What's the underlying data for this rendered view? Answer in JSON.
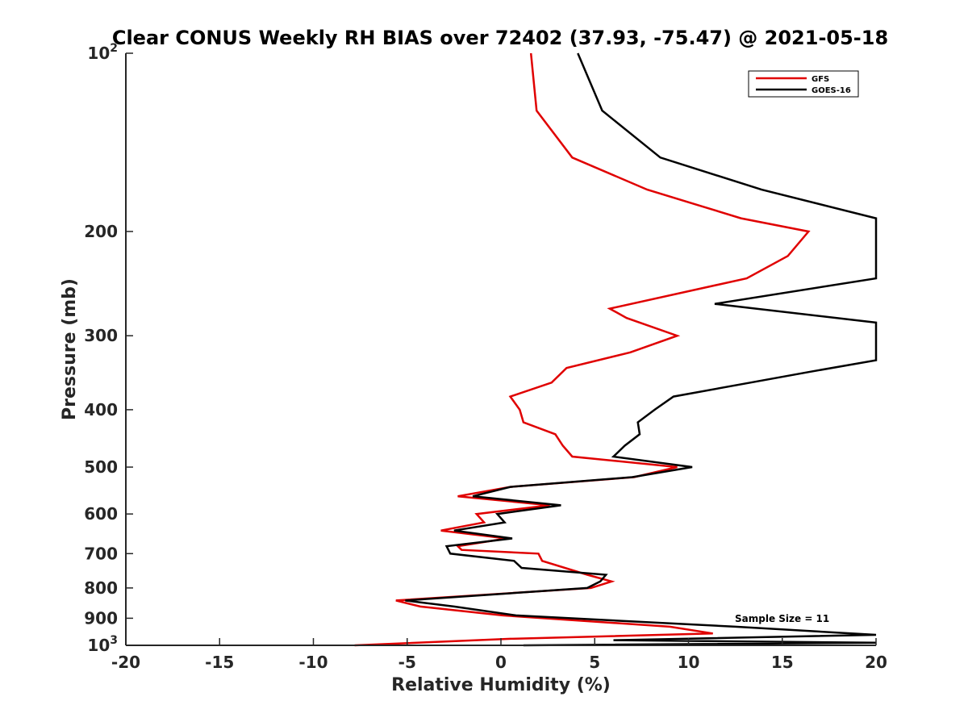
{
  "chart_data": {
    "type": "line",
    "title": "Clear CONUS Weekly RH BIAS over 72402 (37.93, -75.47) @ 2021-05-18",
    "xlabel": "Relative Humidity (%)",
    "ylabel": "Pressure (mb)",
    "xlim": [
      -20,
      20
    ],
    "ylim": [
      100,
      1000
    ],
    "yscale": "log",
    "y_reversed": true,
    "grid": false,
    "legend_position": "top-right",
    "x_ticks": [
      -20,
      -15,
      -10,
      -5,
      0,
      5,
      10,
      15,
      20
    ],
    "x_tick_labels": [
      "-20",
      "-15",
      "-10",
      "-5",
      "0",
      "5",
      "10",
      "15",
      "20"
    ],
    "y_ticks": [
      200,
      300,
      400,
      500,
      600,
      700,
      800,
      900
    ],
    "y_tick_labels": [
      "200",
      "300",
      "400",
      "500",
      "600",
      "700",
      "800",
      "900"
    ],
    "y_decade_ticks": [
      {
        "value": 100,
        "base": "10",
        "exp": "2"
      },
      {
        "value": 1000,
        "base": "10",
        "exp": "3"
      }
    ],
    "annotation": "Sample Size = 11",
    "series": [
      {
        "name": "GFS",
        "color": "#e00000",
        "points": [
          {
            "x": 1.6,
            "y": 100
          },
          {
            "x": 1.9,
            "y": 125
          },
          {
            "x": 3.8,
            "y": 150
          },
          {
            "x": 7.8,
            "y": 170
          },
          {
            "x": 12.8,
            "y": 190
          },
          {
            "x": 16.4,
            "y": 200
          },
          {
            "x": 15.3,
            "y": 220
          },
          {
            "x": 13.1,
            "y": 240
          },
          {
            "x": 5.8,
            "y": 270
          },
          {
            "x": 6.7,
            "y": 280
          },
          {
            "x": 9.4,
            "y": 300
          },
          {
            "x": 6.9,
            "y": 320
          },
          {
            "x": 3.5,
            "y": 340
          },
          {
            "x": 2.7,
            "y": 360
          },
          {
            "x": 0.5,
            "y": 380
          },
          {
            "x": 1.0,
            "y": 400
          },
          {
            "x": 1.2,
            "y": 420
          },
          {
            "x": 2.9,
            "y": 440
          },
          {
            "x": 3.3,
            "y": 460
          },
          {
            "x": 3.8,
            "y": 480
          },
          {
            "x": 9.4,
            "y": 500
          },
          {
            "x": 7.1,
            "y": 520
          },
          {
            "x": 0.5,
            "y": 540
          },
          {
            "x": -2.3,
            "y": 560
          },
          {
            "x": 2.6,
            "y": 580
          },
          {
            "x": -1.3,
            "y": 600
          },
          {
            "x": -0.9,
            "y": 620
          },
          {
            "x": -3.2,
            "y": 640
          },
          {
            "x": 0.3,
            "y": 660
          },
          {
            "x": -2.3,
            "y": 680
          },
          {
            "x": -2.1,
            "y": 690
          },
          {
            "x": 2.0,
            "y": 700
          },
          {
            "x": 2.2,
            "y": 720
          },
          {
            "x": 4.6,
            "y": 760
          },
          {
            "x": 5.9,
            "y": 780
          },
          {
            "x": 4.8,
            "y": 800
          },
          {
            "x": -5.6,
            "y": 840
          },
          {
            "x": -4.3,
            "y": 860
          },
          {
            "x": 0.1,
            "y": 890
          },
          {
            "x": 9.0,
            "y": 930
          },
          {
            "x": 11.3,
            "y": 955
          },
          {
            "x": 0.5,
            "y": 975
          },
          {
            "x": -7.8,
            "y": 1000
          }
        ]
      },
      {
        "name": "GOES-16",
        "color": "#000000",
        "points": [
          {
            "x": 4.1,
            "y": 100
          },
          {
            "x": 5.4,
            "y": 125
          },
          {
            "x": 8.5,
            "y": 150
          },
          {
            "x": 13.9,
            "y": 170
          },
          {
            "x": 20.0,
            "y": 190
          },
          {
            "x": 20.0,
            "y": 240
          },
          {
            "x": 11.4,
            "y": 265
          },
          {
            "x": 20.0,
            "y": 285
          },
          {
            "x": 20.0,
            "y": 330
          },
          {
            "x": 16.5,
            "y": 345
          },
          {
            "x": 13.3,
            "y": 360
          },
          {
            "x": 9.2,
            "y": 380
          },
          {
            "x": 8.2,
            "y": 400
          },
          {
            "x": 7.3,
            "y": 420
          },
          {
            "x": 7.4,
            "y": 440
          },
          {
            "x": 6.6,
            "y": 460
          },
          {
            "x": 6.0,
            "y": 480
          },
          {
            "x": 10.2,
            "y": 500
          },
          {
            "x": 7.0,
            "y": 520
          },
          {
            "x": 0.5,
            "y": 540
          },
          {
            "x": -1.5,
            "y": 560
          },
          {
            "x": 3.2,
            "y": 580
          },
          {
            "x": -0.2,
            "y": 600
          },
          {
            "x": 0.2,
            "y": 620
          },
          {
            "x": -2.5,
            "y": 640
          },
          {
            "x": 0.6,
            "y": 660
          },
          {
            "x": -2.9,
            "y": 680
          },
          {
            "x": -2.7,
            "y": 700
          },
          {
            "x": 0.7,
            "y": 720
          },
          {
            "x": 1.1,
            "y": 740
          },
          {
            "x": 5.6,
            "y": 760
          },
          {
            "x": 5.3,
            "y": 780
          },
          {
            "x": 4.6,
            "y": 800
          },
          {
            "x": -5.1,
            "y": 840
          },
          {
            "x": -2.5,
            "y": 860
          },
          {
            "x": 0.8,
            "y": 890
          },
          {
            "x": 12.5,
            "y": 930
          },
          {
            "x": 20.0,
            "y": 960
          },
          {
            "x": 6.0,
            "y": 980
          },
          {
            "x": 20.0,
            "y": 990
          },
          {
            "x": 1.2,
            "y": 1000
          }
        ]
      }
    ]
  }
}
